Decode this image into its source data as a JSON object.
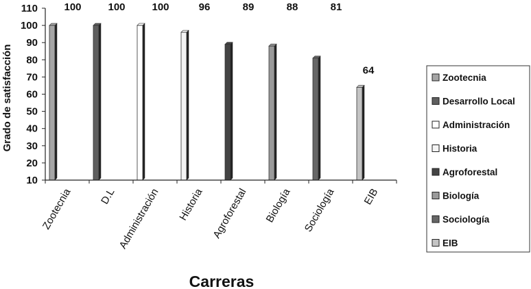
{
  "chart_data": {
    "type": "bar",
    "categories": [
      "Zootecnia",
      "D.L",
      "Administración",
      "Historia",
      "Agroforestal",
      "Biología",
      "Sociología",
      "EIB"
    ],
    "values": [
      100,
      100,
      100,
      96,
      89,
      88,
      81,
      64
    ],
    "data_labels": [
      "100",
      "100",
      "100",
      "96",
      "89",
      "88",
      "81",
      "64"
    ],
    "xlabel": "Carreras",
    "ylabel": "Grado de satisfacción",
    "ylim": [
      10,
      110
    ],
    "yticks": [
      10,
      20,
      30,
      40,
      50,
      60,
      70,
      80,
      90,
      100,
      110
    ],
    "grid": false,
    "legend_position": "right",
    "legend": [
      "Zootecnia",
      "Desarrollo Local",
      "Administración",
      "Historia",
      "Agroforestal",
      "Biología",
      "Sociología",
      "EIB"
    ],
    "colors": [
      "#a6a6a6",
      "#5f5f5f",
      "#ffffff",
      "#f4f4f4",
      "#444444",
      "#9a9a9a",
      "#666666",
      "#c4c4c4"
    ]
  }
}
